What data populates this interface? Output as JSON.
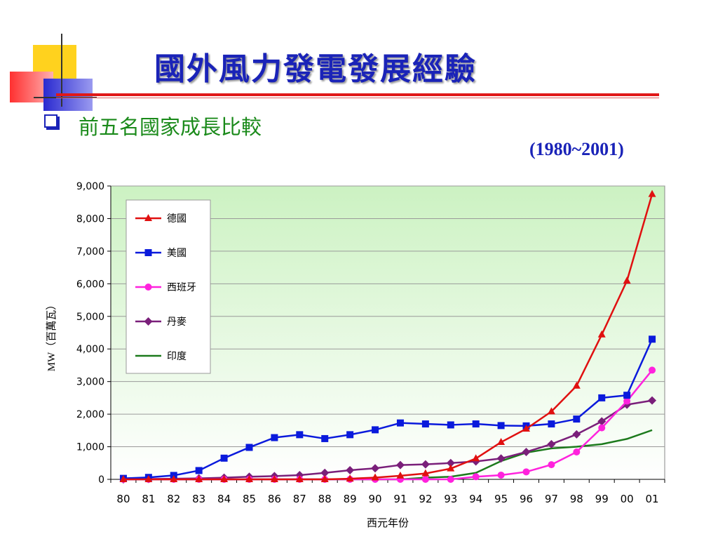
{
  "slide": {
    "title": "國外風力發電發展經驗",
    "subtitle": "前五名國家成長比較",
    "period": "(1980~2001)"
  },
  "colors": {
    "title": "#1a23b8",
    "subtitle": "#1a8a1a",
    "title_line": "#e01818",
    "plot_bg_top": "#ccf2c2",
    "plot_bg_bottom": "#ffffff",
    "deco_yellow": "#ffd21e",
    "deco_red": "#ff4040",
    "deco_blue": "#3a3ad8"
  },
  "chart_data": {
    "type": "line",
    "xlabel": "西元年份",
    "ylabel": "MW（百萬瓦）",
    "ylim": [
      0,
      9000
    ],
    "yticks": [
      0,
      1000,
      2000,
      3000,
      4000,
      5000,
      6000,
      7000,
      8000,
      9000
    ],
    "ytick_labels": [
      "0",
      "1,000",
      "2,000",
      "3,000",
      "4,000",
      "5,000",
      "6,000",
      "7,000",
      "8,000",
      "9,000"
    ],
    "categories": [
      "80",
      "81",
      "82",
      "83",
      "84",
      "85",
      "86",
      "87",
      "88",
      "89",
      "90",
      "91",
      "92",
      "93",
      "94",
      "95",
      "96",
      "97",
      "98",
      "99",
      "00",
      "01"
    ],
    "grid": true,
    "legend_position": "top-left",
    "series": [
      {
        "name": "德國",
        "color": "#e01010",
        "marker": "triangle",
        "values": [
          0,
          0,
          0,
          0,
          0,
          0,
          0,
          0,
          0,
          20,
          55,
          110,
          180,
          330,
          640,
          1140,
          1550,
          2080,
          2870,
          4440,
          6090,
          8750
        ]
      },
      {
        "name": "美國",
        "color": "#0a1adc",
        "marker": "square",
        "values": [
          30,
          60,
          120,
          270,
          650,
          980,
          1280,
          1370,
          1250,
          1370,
          1520,
          1730,
          1700,
          1670,
          1700,
          1650,
          1640,
          1700,
          1850,
          2500,
          2580,
          4300
        ]
      },
      {
        "name": "西班牙",
        "color": "#ff22dd",
        "marker": "circle",
        "values": [
          0,
          0,
          0,
          0,
          0,
          0,
          0,
          0,
          0,
          0,
          0,
          0,
          0,
          0,
          80,
          130,
          230,
          450,
          840,
          1580,
          2400,
          3350
        ]
      },
      {
        "name": "丹麥",
        "color": "#7a1f7a",
        "marker": "diamond",
        "values": [
          0,
          10,
          20,
          30,
          50,
          80,
          100,
          130,
          200,
          280,
          340,
          440,
          460,
          500,
          550,
          640,
          840,
          1080,
          1380,
          1780,
          2290,
          2420
        ]
      },
      {
        "name": "印度",
        "color": "#1c7a1c",
        "marker": "none",
        "values": [
          0,
          0,
          0,
          0,
          0,
          0,
          0,
          0,
          0,
          0,
          0,
          0,
          50,
          80,
          200,
          560,
          820,
          950,
          1000,
          1080,
          1240,
          1510
        ]
      }
    ]
  }
}
